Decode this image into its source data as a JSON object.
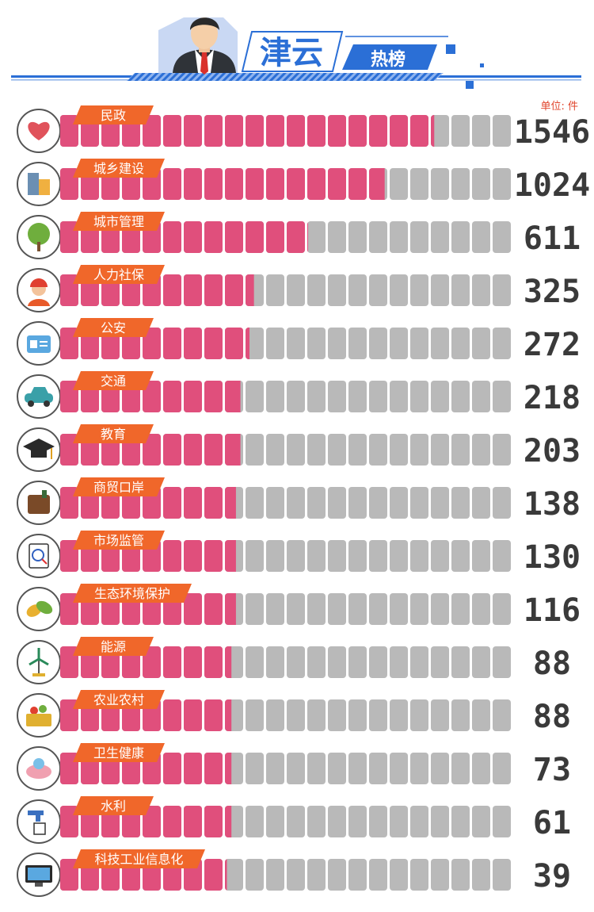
{
  "header": {
    "title": "津云",
    "subtitle": "热榜"
  },
  "unit_label": "单位: 件",
  "colors": {
    "accent_blue": "#2b6fd6",
    "banner_orange": "#f0672a",
    "bar_pink": "#e04f7c",
    "bar_gray": "#b9b9b9",
    "icon_border": "#555555"
  },
  "chart_data": {
    "type": "bar",
    "orientation": "horizontal",
    "categories": [
      "民政",
      "城乡建设",
      "城市管理",
      "人力社保",
      "公安",
      "交通",
      "教育",
      "商贸口岸",
      "市场监管",
      "生态环境保护",
      "能源",
      "农业农村",
      "卫生健康",
      "水利",
      "科技工业信息化"
    ],
    "icons": [
      "heart-hands-icon",
      "buildings-icon",
      "tree-icon",
      "worker-helmet-icon",
      "id-card-icon",
      "car-icon",
      "graduation-cap-icon",
      "wallet-icon",
      "inspection-clipboard-icon",
      "leaves-icon",
      "wind-turbine-icon",
      "vegetable-basket-icon",
      "medical-hands-icon",
      "water-tap-icon",
      "computer-monitor-icon"
    ],
    "values": [
      1546,
      1024,
      611,
      325,
      272,
      218,
      203,
      138,
      130,
      116,
      88,
      88,
      73,
      61,
      39
    ],
    "value_labels": [
      "1546",
      "1024",
      "611",
      "325",
      "272",
      "218",
      "203",
      "138",
      "130",
      "116",
      "88",
      "88",
      "73",
      "61",
      "39"
    ],
    "fill_fractions": [
      0.83,
      0.72,
      0.55,
      0.43,
      0.42,
      0.4,
      0.4,
      0.39,
      0.39,
      0.39,
      0.38,
      0.38,
      0.38,
      0.38,
      0.37
    ],
    "segments_per_bar": 22
  }
}
